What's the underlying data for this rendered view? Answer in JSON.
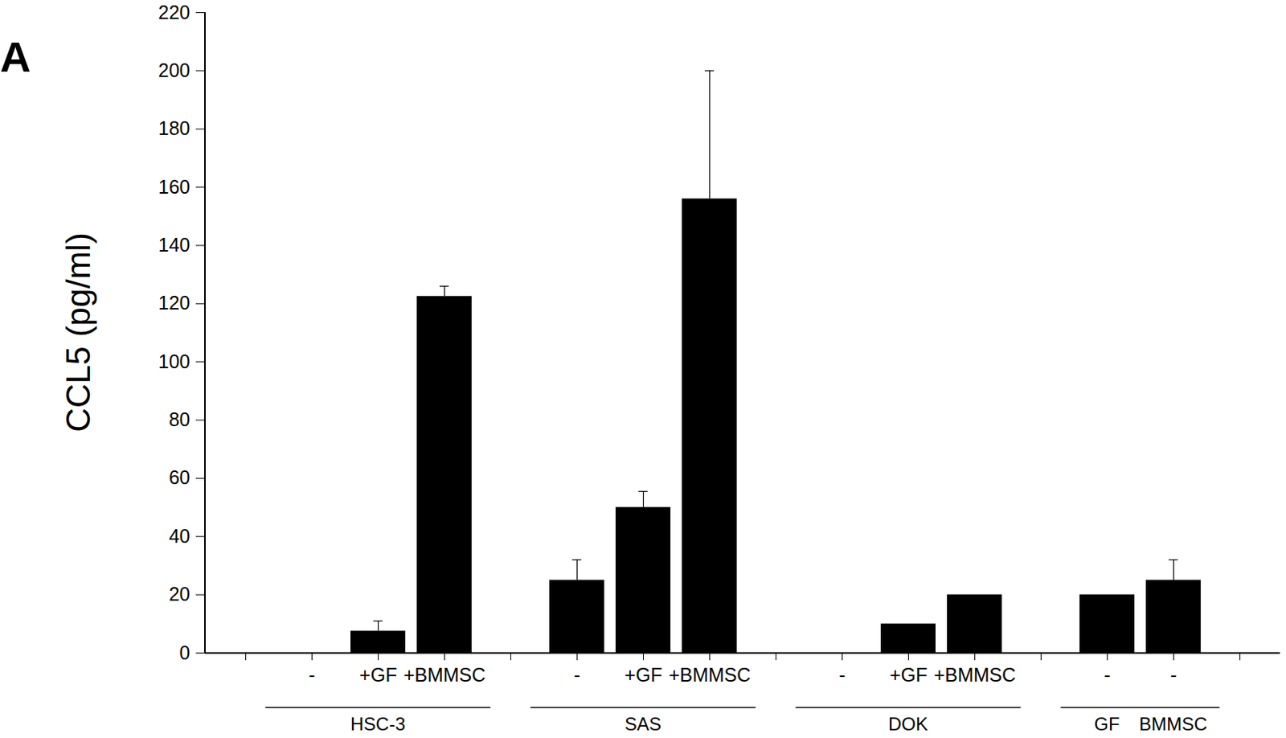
{
  "chart_data": {
    "type": "bar",
    "panel_label": "A",
    "y_label": "CCL5 (pg/ml)",
    "categories": [
      null,
      "-",
      "+GF",
      "+BMMSC",
      null,
      "-",
      "+GF",
      "+BMMSC",
      null,
      "-",
      "+GF",
      "+BMMSC",
      null,
      "-",
      "-",
      null
    ],
    "groups": [
      null,
      "HSC-3",
      "HSC-3",
      "HSC-3",
      null,
      "SAS",
      "SAS",
      "SAS",
      null,
      "DOK",
      "DOK",
      "DOK",
      null,
      "GF",
      "BMMSC",
      null
    ],
    "values": [
      null,
      0,
      7.5,
      122.5,
      null,
      25,
      50,
      156,
      null,
      0,
      10,
      20,
      null,
      20,
      25,
      null
    ],
    "errors": [
      null,
      null,
      3.5,
      3.5,
      null,
      7,
      5.5,
      44,
      null,
      null,
      null,
      null,
      null,
      null,
      7,
      null
    ],
    "color": "#000000",
    "ylim": [
      0,
      220
    ],
    "yticks": [
      0,
      20,
      40,
      60,
      80,
      100,
      120,
      140,
      160,
      180,
      200,
      220
    ]
  }
}
